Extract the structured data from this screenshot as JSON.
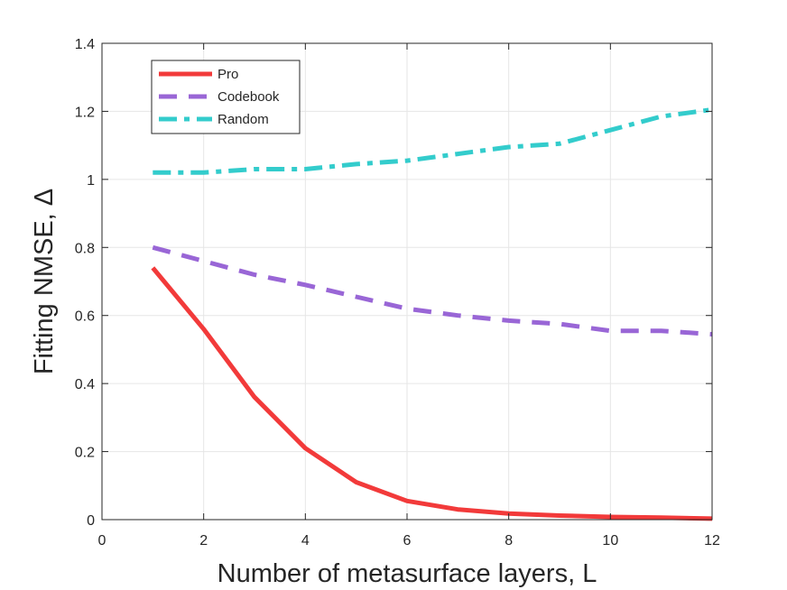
{
  "chart_data": {
    "type": "line",
    "title": "",
    "xlabel": "Number of metasurface layers, L",
    "ylabel": "Fitting NMSE, Δ",
    "xlim": [
      0,
      12
    ],
    "ylim": [
      0,
      1.4
    ],
    "xticks": [
      0,
      2,
      4,
      6,
      8,
      10,
      12
    ],
    "yticks": [
      0,
      0.2,
      0.4,
      0.6,
      0.8,
      1,
      1.2,
      1.4
    ],
    "xtick_labels": [
      "0",
      "2",
      "4",
      "6",
      "8",
      "10",
      "12"
    ],
    "ytick_labels": [
      "0",
      "0.2",
      "0.4",
      "0.6",
      "0.8",
      "1",
      "1.2",
      "1.4"
    ],
    "grid": true,
    "legend_position": "top-left",
    "x": [
      1,
      2,
      3,
      4,
      5,
      6,
      7,
      8,
      9,
      10,
      11,
      12
    ],
    "series": [
      {
        "name": "Pro",
        "color": "#f23a3a",
        "style": "solid",
        "values": [
          0.74,
          0.56,
          0.36,
          0.21,
          0.11,
          0.055,
          0.03,
          0.018,
          0.012,
          0.008,
          0.006,
          0.003
        ]
      },
      {
        "name": "Codebook",
        "color": "#9966d6",
        "style": "dashed",
        "values": [
          0.8,
          0.76,
          0.72,
          0.69,
          0.655,
          0.62,
          0.6,
          0.585,
          0.575,
          0.555,
          0.555,
          0.545
        ]
      },
      {
        "name": "Random",
        "color": "#33cccc",
        "style": "dashdot",
        "values": [
          1.02,
          1.02,
          1.03,
          1.03,
          1.045,
          1.055,
          1.075,
          1.095,
          1.105,
          1.145,
          1.185,
          1.205
        ]
      }
    ]
  }
}
